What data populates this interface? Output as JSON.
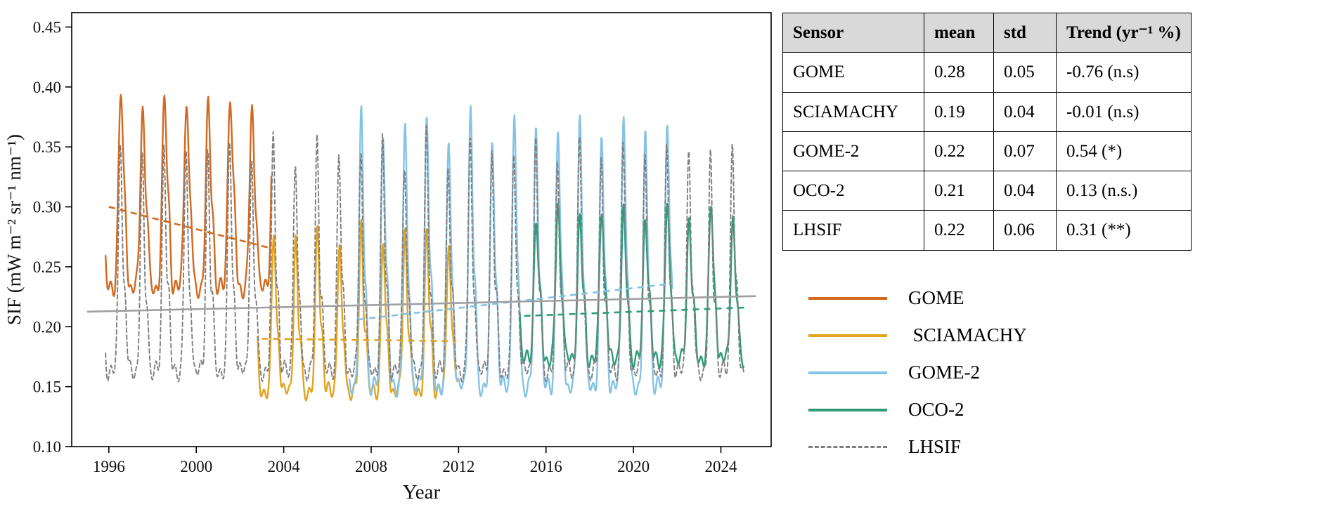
{
  "chart_data": {
    "type": "line",
    "title": "",
    "xlabel": "Year",
    "ylabel": "SIF (mW m⁻² sr⁻¹ nm⁻¹)",
    "xlim": [
      1994.3,
      2026.3
    ],
    "ylim": [
      0.1,
      0.462
    ],
    "x_ticks": [
      1996,
      2000,
      2004,
      2008,
      2012,
      2016,
      2020,
      2024
    ],
    "y_ticks": [
      0.1,
      0.15,
      0.2,
      0.25,
      0.3,
      0.35,
      0.4,
      0.45
    ],
    "grid": false,
    "legend_position": "right",
    "frame_color": "#000000",
    "series": [
      {
        "name": "GOME",
        "color": "#d2691e",
        "dash": false,
        "width": 2.4,
        "year_start": 1995.85,
        "year_end": 2003.45,
        "seasonal_trough": 0.232,
        "seasonal_peak": 0.388,
        "peak_phase": 0.545,
        "peak_width": 0.105,
        "peak_variation": 0.05,
        "noise": 0.009,
        "seed": 3
      },
      {
        "name": "SCIAMACHY",
        "color": "#e3a322",
        "dash": false,
        "width": 2.4,
        "year_start": 2002.8,
        "year_end": 2011.95,
        "seasonal_trough": 0.146,
        "seasonal_peak": 0.278,
        "peak_phase": 0.545,
        "peak_width": 0.09,
        "peak_variation": 0.07,
        "noise": 0.008,
        "seed": 11
      },
      {
        "name": "GOME-2",
        "color": "#84c3e6",
        "dash": false,
        "width": 2.4,
        "year_start": 2007.0,
        "year_end": 2021.8,
        "seasonal_trough": 0.15,
        "seasonal_peak": 0.368,
        "peak_phase": 0.545,
        "peak_width": 0.095,
        "peak_variation": 0.06,
        "noise": 0.009,
        "seed": 23
      },
      {
        "name": "OCO-2",
        "color": "#2e9c76",
        "dash": false,
        "width": 2.4,
        "year_start": 2014.8,
        "year_end": 2025.05,
        "seasonal_trough": 0.173,
        "seasonal_peak": 0.296,
        "peak_phase": 0.545,
        "peak_width": 0.1,
        "peak_variation": 0.05,
        "noise": 0.008,
        "seed": 31
      },
      {
        "name": "LHSIF",
        "color": "#7f7f7f",
        "dash": true,
        "width": 1.9,
        "year_start": 1995.85,
        "year_end": 2025.05,
        "seasonal_trough": 0.163,
        "seasonal_peak": 0.349,
        "peak_phase": 0.525,
        "peak_width": 0.085,
        "peak_variation": 0.06,
        "noise": 0.009,
        "seed": 41
      }
    ],
    "trend_lines": [
      {
        "series": "GOME",
        "color": "#d2691e",
        "dash": true,
        "x": [
          1996.0,
          2003.3
        ],
        "y": [
          0.3,
          0.266
        ]
      },
      {
        "series": "SCIAMACHY",
        "color": "#e3a322",
        "dash": true,
        "x": [
          2003.0,
          2011.9
        ],
        "y": [
          0.19,
          0.188
        ]
      },
      {
        "series": "GOME-2",
        "color": "#84c3e6",
        "dash": true,
        "x": [
          2007.4,
          2021.8
        ],
        "y": [
          0.206,
          0.236
        ]
      },
      {
        "series": "OCO-2",
        "color": "#2e9c76",
        "dash": true,
        "x": [
          2015.0,
          2025.1
        ],
        "y": [
          0.209,
          0.216
        ]
      },
      {
        "series": "LHSIF",
        "color": "#a0a0a0",
        "dash": false,
        "x": [
          1995.0,
          2025.6
        ],
        "y": [
          0.2125,
          0.2255
        ]
      }
    ]
  },
  "table": {
    "header_bg": "#d9d9d9",
    "headers": [
      "Sensor",
      "mean",
      "std",
      "Trend (yr⁻¹ %)"
    ],
    "rows": [
      {
        "sensor": "GOME",
        "mean": "0.28",
        "std": "0.05",
        "trend": "-0.76 (n.s)"
      },
      {
        "sensor": "SCIAMACHY",
        "mean": "0.19",
        "std": "0.04",
        "trend": "-0.01 (n.s)"
      },
      {
        "sensor": "GOME-2",
        "mean": "0.22",
        "std": "0.07",
        "trend": "0.54 (*)"
      },
      {
        "sensor": "OCO-2",
        "mean": "0.21",
        "std": "0.04",
        "trend": "0.13 (n.s.)"
      },
      {
        "sensor": "LHSIF",
        "mean": "0.22",
        "std": "0.06",
        "trend": "0.31 (**)"
      }
    ]
  },
  "legend": {
    "items": [
      {
        "label": "GOME",
        "color": "#d2691e",
        "dash": false
      },
      {
        "label": " SCIAMACHY",
        "color": "#e3a322",
        "dash": false
      },
      {
        "label": "GOME-2",
        "color": "#84c3e6",
        "dash": false
      },
      {
        "label": "OCO-2",
        "color": "#2e9c76",
        "dash": false
      },
      {
        "label": "LHSIF",
        "color": "#7f7f7f",
        "dash": true
      }
    ]
  }
}
